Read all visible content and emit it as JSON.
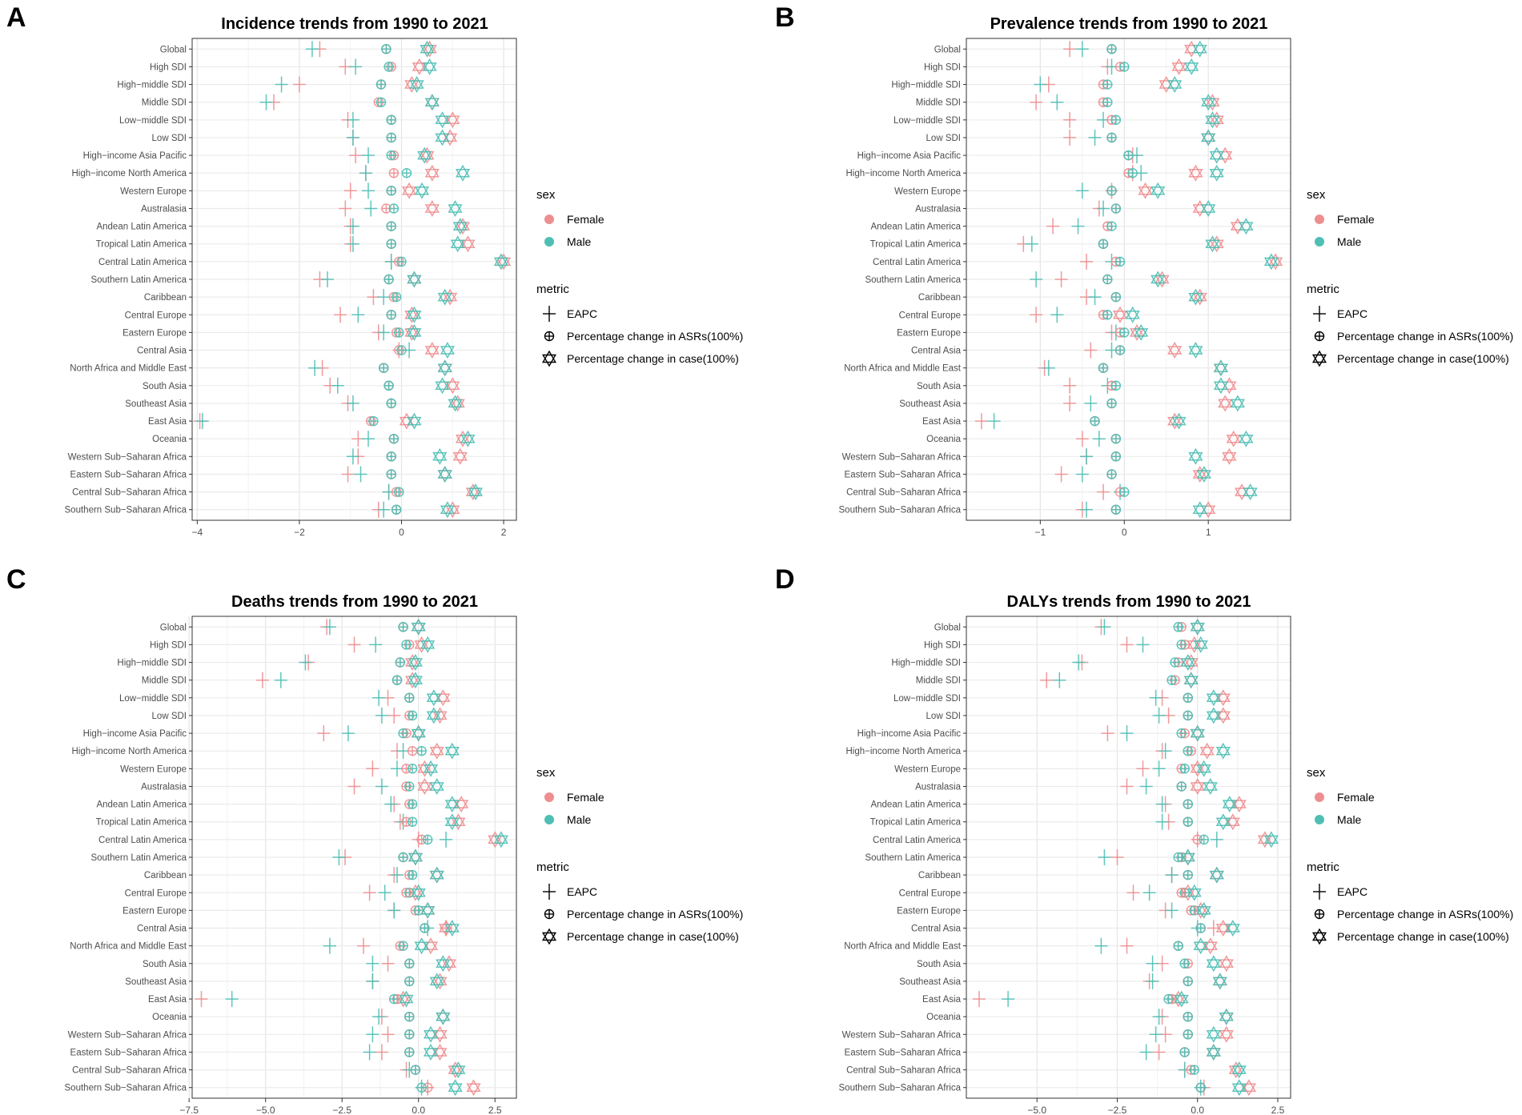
{
  "regions": [
    "Global",
    "High SDI",
    "High−middle SDI",
    "Middle SDI",
    "Low−middle SDI",
    "Low SDI",
    "High−income Asia Pacific",
    "High−income North America",
    "Western Europe",
    "Australasia",
    "Andean Latin America",
    "Tropical Latin America",
    "Central Latin America",
    "Southern Latin America",
    "Caribbean",
    "Central Europe",
    "Eastern Europe",
    "Central Asia",
    "North Africa and Middle East",
    "South Asia",
    "Southeast Asia",
    "East Asia",
    "Oceania",
    "Western Sub−Saharan Africa",
    "Eastern Sub−Saharan Africa",
    "Central Sub−Saharan Africa",
    "Southern Sub−Saharan Africa"
  ],
  "legend": {
    "sex_title": "sex",
    "sex_items": [
      {
        "label": "Female",
        "color": "#EE8E90"
      },
      {
        "label": "Male",
        "color": "#4FBFB5"
      }
    ],
    "metric_title": "metric",
    "metric_items": [
      {
        "label": "EAPC",
        "icon": "cross-icon"
      },
      {
        "label": "Percentage change in ASRs(100%)",
        "icon": "circle-cross-icon"
      },
      {
        "label": "Percentage change in case(100%)",
        "icon": "hexagram-icon"
      }
    ]
  },
  "chart_data": [
    {
      "panel_label": "A",
      "type": "scatter",
      "title": "Incidence trends from 1990 to 2021",
      "xlim": [
        -4.1,
        2.25
      ],
      "xticks": [
        -4,
        -2,
        0,
        2
      ],
      "xtick_labels": [
        "−4",
        "−2",
        "0",
        "2"
      ],
      "series": [
        {
          "name": "Female",
          "metric": "EAPC",
          "values": [
            -1.6,
            -1.1,
            -2.0,
            -2.5,
            -1.05,
            -0.95,
            -0.9,
            -0.7,
            -1.0,
            -1.1,
            -1.0,
            -1.0,
            -0.2,
            -1.6,
            -0.55,
            -1.2,
            -0.45,
            -0.05,
            -1.55,
            -1.4,
            -1.05,
            -3.95,
            -0.85,
            -0.85,
            -1.05,
            -0.25,
            -0.45
          ]
        },
        {
          "name": "Male",
          "metric": "EAPC",
          "values": [
            -1.75,
            -0.9,
            -2.35,
            -2.65,
            -0.95,
            -0.95,
            -0.65,
            -0.7,
            -0.65,
            -0.6,
            -0.95,
            -0.95,
            -0.2,
            -1.45,
            -0.35,
            -0.85,
            -0.35,
            0.15,
            -1.7,
            -1.25,
            -0.95,
            -3.9,
            -0.65,
            -0.95,
            -0.8,
            -0.25,
            -0.35
          ]
        },
        {
          "name": "Female",
          "metric": "ASR",
          "values": [
            -0.3,
            -0.2,
            -0.4,
            -0.45,
            -0.2,
            -0.2,
            -0.15,
            -0.15,
            -0.2,
            -0.3,
            -0.2,
            -0.2,
            -0.05,
            -0.25,
            -0.15,
            -0.2,
            -0.1,
            -0.05,
            -0.35,
            -0.25,
            -0.2,
            -0.6,
            -0.15,
            -0.2,
            -0.2,
            -0.1,
            -0.1
          ]
        },
        {
          "name": "Male",
          "metric": "ASR",
          "values": [
            -0.3,
            -0.25,
            -0.4,
            -0.4,
            -0.2,
            -0.2,
            -0.2,
            0.1,
            -0.2,
            -0.15,
            -0.2,
            -0.2,
            0.0,
            -0.25,
            -0.1,
            -0.2,
            -0.05,
            0.0,
            -0.35,
            -0.25,
            -0.2,
            -0.55,
            -0.15,
            -0.2,
            -0.2,
            -0.05,
            -0.1
          ]
        },
        {
          "name": "Female",
          "metric": "Case",
          "values": [
            0.55,
            0.35,
            0.2,
            0.6,
            1.0,
            0.95,
            0.5,
            0.6,
            0.15,
            0.6,
            1.2,
            1.3,
            2.0,
            0.25,
            0.95,
            0.2,
            0.2,
            0.6,
            0.85,
            1.0,
            1.1,
            0.1,
            1.2,
            1.15,
            0.85,
            1.4,
            1.0
          ]
        },
        {
          "name": "Male",
          "metric": "Case",
          "values": [
            0.5,
            0.55,
            0.3,
            0.6,
            0.8,
            0.8,
            0.45,
            1.2,
            0.4,
            1.05,
            1.15,
            1.1,
            1.95,
            0.25,
            0.85,
            0.25,
            0.25,
            0.9,
            0.85,
            0.8,
            1.05,
            0.25,
            1.3,
            0.75,
            0.85,
            1.45,
            0.9
          ]
        }
      ]
    },
    {
      "panel_label": "B",
      "type": "scatter",
      "title": "Prevalence trends from 1990 to 2021",
      "xlim": [
        -1.88,
        1.98
      ],
      "xticks": [
        -1,
        0,
        1
      ],
      "xtick_labels": [
        "−1",
        "0",
        "1"
      ],
      "series": [
        {
          "name": "Female",
          "metric": "EAPC",
          "values": [
            -0.65,
            -0.2,
            -0.9,
            -1.05,
            -0.65,
            -0.65,
            0.1,
            0.1,
            -0.15,
            -0.3,
            -0.85,
            -1.2,
            -0.45,
            -0.75,
            -0.45,
            -1.05,
            -0.15,
            -0.4,
            -0.95,
            -0.65,
            -0.65,
            -1.7,
            -0.5,
            -0.45,
            -0.75,
            -0.25,
            -0.5
          ]
        },
        {
          "name": "Male",
          "metric": "EAPC",
          "values": [
            -0.5,
            -0.15,
            -1.0,
            -0.8,
            -0.25,
            -0.35,
            0.15,
            0.2,
            -0.5,
            -0.25,
            -0.55,
            -1.1,
            -0.15,
            -1.05,
            -0.35,
            -0.8,
            -0.1,
            -0.15,
            -0.9,
            -0.2,
            -0.4,
            -1.55,
            -0.3,
            -0.45,
            -0.5,
            -0.05,
            -0.45
          ]
        },
        {
          "name": "Female",
          "metric": "ASR",
          "values": [
            -0.15,
            -0.05,
            -0.25,
            -0.25,
            -0.15,
            -0.15,
            0.05,
            0.05,
            -0.15,
            -0.1,
            -0.2,
            -0.25,
            -0.1,
            -0.2,
            -0.1,
            -0.25,
            -0.05,
            -0.05,
            -0.25,
            -0.15,
            -0.15,
            -0.35,
            -0.1,
            -0.1,
            -0.15,
            -0.05,
            -0.1
          ]
        },
        {
          "name": "Male",
          "metric": "ASR",
          "values": [
            -0.15,
            0.0,
            -0.2,
            -0.2,
            -0.1,
            -0.15,
            0.05,
            0.1,
            -0.15,
            -0.1,
            -0.15,
            -0.25,
            -0.05,
            -0.2,
            -0.1,
            -0.2,
            0.0,
            -0.05,
            -0.25,
            -0.1,
            -0.15,
            -0.35,
            -0.1,
            -0.1,
            -0.15,
            0.0,
            -0.1
          ]
        },
        {
          "name": "Female",
          "metric": "Case",
          "values": [
            0.8,
            0.65,
            0.5,
            1.05,
            1.1,
            1.0,
            1.2,
            0.85,
            0.25,
            0.9,
            1.35,
            1.1,
            1.8,
            0.45,
            0.9,
            -0.05,
            0.15,
            0.6,
            1.15,
            1.25,
            1.2,
            0.6,
            1.3,
            1.25,
            0.9,
            1.4,
            1.0
          ]
        },
        {
          "name": "Male",
          "metric": "Case",
          "values": [
            0.9,
            0.8,
            0.6,
            1.0,
            1.05,
            1.0,
            1.1,
            1.1,
            0.4,
            1.0,
            1.45,
            1.05,
            1.75,
            0.4,
            0.85,
            0.1,
            0.2,
            0.85,
            1.15,
            1.15,
            1.35,
            0.65,
            1.45,
            0.85,
            0.95,
            1.5,
            0.9
          ]
        }
      ]
    },
    {
      "panel_label": "C",
      "type": "scatter",
      "title": "Deaths trends from 1990 to 2021",
      "xlim": [
        -7.4,
        3.2
      ],
      "xticks": [
        -7.5,
        -5,
        -2.5,
        0,
        2.5
      ],
      "xtick_labels": [
        "−7.5",
        "−5.0",
        "−2.5",
        "0.0",
        "2.5"
      ],
      "series": [
        {
          "name": "Female",
          "metric": "EAPC",
          "values": [
            -3.0,
            -2.1,
            -3.6,
            -5.1,
            -1.0,
            -0.8,
            -3.1,
            -0.7,
            -1.5,
            -2.1,
            -0.8,
            -0.6,
            0.0,
            -2.4,
            -0.8,
            -1.6,
            -0.8,
            0.9,
            -1.8,
            -1.0,
            -1.5,
            -7.1,
            -1.2,
            -1.0,
            -1.2,
            -0.4,
            0.3
          ]
        },
        {
          "name": "Male",
          "metric": "EAPC",
          "values": [
            -2.9,
            -1.4,
            -3.7,
            -4.5,
            -1.3,
            -1.2,
            -2.3,
            -0.5,
            -0.7,
            -1.2,
            -0.9,
            -0.5,
            0.9,
            -2.6,
            -0.7,
            -1.1,
            -0.8,
            0.3,
            -2.9,
            -1.5,
            -1.5,
            -6.1,
            -1.3,
            -1.5,
            -1.6,
            -0.3,
            0.1
          ]
        },
        {
          "name": "Female",
          "metric": "ASR",
          "values": [
            -0.5,
            -0.3,
            -0.6,
            -0.7,
            -0.3,
            -0.3,
            -0.4,
            -0.2,
            -0.4,
            -0.4,
            -0.3,
            -0.4,
            0.1,
            -0.5,
            -0.3,
            -0.4,
            -0.1,
            0.2,
            -0.6,
            -0.3,
            -0.3,
            -0.7,
            -0.3,
            -0.3,
            -0.3,
            -0.1,
            0.3
          ]
        },
        {
          "name": "Male",
          "metric": "ASR",
          "values": [
            -0.5,
            -0.4,
            -0.6,
            -0.7,
            -0.3,
            -0.2,
            -0.5,
            0.1,
            -0.2,
            -0.3,
            -0.2,
            -0.2,
            0.3,
            -0.5,
            -0.2,
            -0.3,
            0.0,
            0.2,
            -0.5,
            -0.3,
            -0.3,
            -0.8,
            -0.3,
            -0.3,
            -0.3,
            -0.1,
            0.1
          ]
        },
        {
          "name": "Female",
          "metric": "Case",
          "values": [
            0.0,
            0.1,
            -0.2,
            -0.2,
            0.8,
            0.7,
            0.0,
            0.6,
            0.2,
            0.2,
            1.4,
            1.3,
            2.5,
            -0.1,
            0.6,
            -0.1,
            0.3,
            0.9,
            0.4,
            1.0,
            0.7,
            -0.5,
            0.8,
            0.7,
            0.7,
            1.2,
            1.8
          ]
        },
        {
          "name": "Male",
          "metric": "Case",
          "values": [
            0.0,
            0.3,
            -0.1,
            -0.1,
            0.5,
            0.5,
            0.0,
            1.1,
            0.4,
            0.6,
            1.1,
            1.1,
            2.7,
            -0.1,
            0.6,
            0.0,
            0.3,
            1.1,
            0.1,
            0.8,
            0.6,
            -0.4,
            0.8,
            0.4,
            0.4,
            1.3,
            1.2
          ]
        }
      ]
    },
    {
      "panel_label": "D",
      "type": "scatter",
      "title": "DALYs trends from 1990 to 2021",
      "xlim": [
        -7.2,
        2.9
      ],
      "xticks": [
        -5,
        -2.5,
        0,
        2.5
      ],
      "xtick_labels": [
        "−5.0",
        "−2.5",
        "0.0",
        "2.5"
      ],
      "series": [
        {
          "name": "Female",
          "metric": "EAPC",
          "values": [
            -3.0,
            -2.2,
            -3.6,
            -4.7,
            -1.1,
            -0.9,
            -2.8,
            -1.1,
            -1.7,
            -2.2,
            -1.0,
            -0.9,
            0.0,
            -2.5,
            -0.8,
            -2.0,
            -1.0,
            0.5,
            -2.2,
            -1.1,
            -1.5,
            -6.8,
            -1.1,
            -1.0,
            -1.2,
            -0.4,
            0.2
          ]
        },
        {
          "name": "Male",
          "metric": "EAPC",
          "values": [
            -2.9,
            -1.7,
            -3.7,
            -4.3,
            -1.3,
            -1.2,
            -2.2,
            -1.0,
            -1.2,
            -1.6,
            -1.1,
            -1.1,
            0.6,
            -2.9,
            -0.8,
            -1.5,
            -0.8,
            0.0,
            -3.0,
            -1.4,
            -1.4,
            -5.9,
            -1.2,
            -1.3,
            -1.6,
            -0.4,
            0.1
          ]
        },
        {
          "name": "Female",
          "metric": "ASR",
          "values": [
            -0.5,
            -0.4,
            -0.6,
            -0.7,
            -0.3,
            -0.3,
            -0.4,
            -0.2,
            -0.5,
            -0.5,
            -0.3,
            -0.3,
            0.0,
            -0.5,
            -0.3,
            -0.5,
            -0.2,
            0.1,
            -0.6,
            -0.3,
            -0.3,
            -0.8,
            -0.3,
            -0.3,
            -0.4,
            -0.2,
            0.1
          ]
        },
        {
          "name": "Male",
          "metric": "ASR",
          "values": [
            -0.6,
            -0.5,
            -0.7,
            -0.8,
            -0.3,
            -0.3,
            -0.5,
            -0.3,
            -0.4,
            -0.5,
            -0.3,
            -0.3,
            0.2,
            -0.6,
            -0.3,
            -0.4,
            -0.1,
            0.1,
            -0.6,
            -0.4,
            -0.3,
            -0.9,
            -0.3,
            -0.3,
            -0.4,
            -0.1,
            0.1
          ]
        },
        {
          "name": "Female",
          "metric": "Case",
          "values": [
            0.0,
            -0.1,
            -0.2,
            -0.2,
            0.8,
            0.8,
            0.0,
            0.3,
            0.0,
            0.0,
            1.3,
            1.1,
            2.1,
            -0.3,
            0.6,
            -0.3,
            0.1,
            0.8,
            0.4,
            0.9,
            0.7,
            -0.6,
            0.9,
            0.9,
            0.5,
            1.2,
            1.6
          ]
        },
        {
          "name": "Male",
          "metric": "Case",
          "values": [
            0.0,
            0.1,
            -0.3,
            -0.2,
            0.5,
            0.5,
            0.0,
            0.8,
            0.2,
            0.4,
            1.0,
            0.8,
            2.3,
            -0.3,
            0.6,
            -0.1,
            0.2,
            1.1,
            0.1,
            0.5,
            0.7,
            -0.5,
            0.9,
            0.5,
            0.5,
            1.3,
            1.3
          ]
        }
      ]
    }
  ]
}
